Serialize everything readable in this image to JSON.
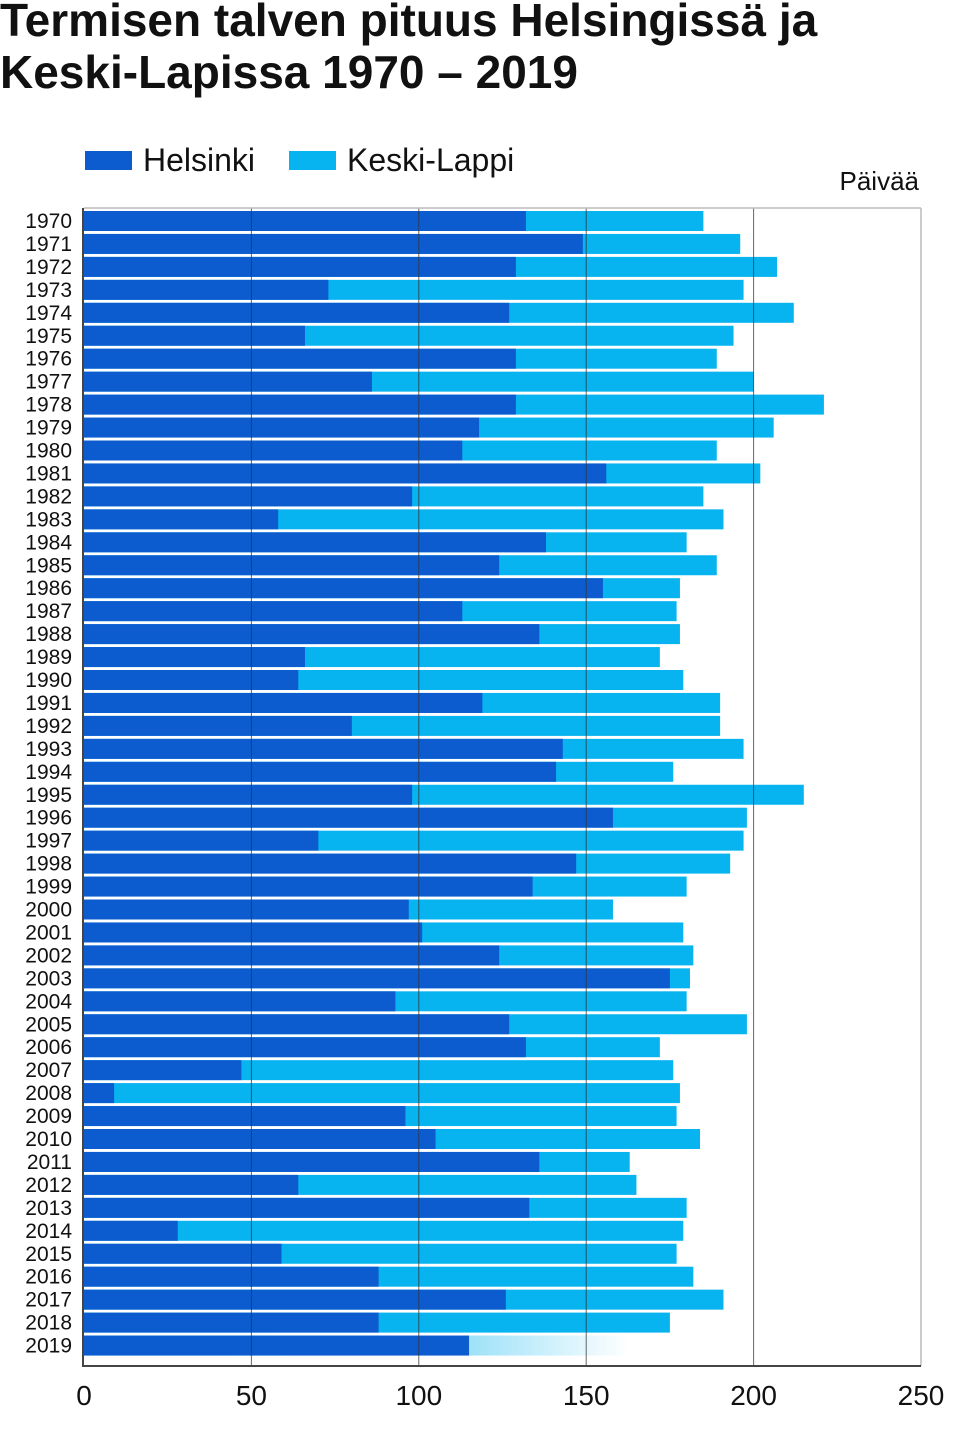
{
  "title": "Termisen talven pituus Helsingissä ja Keski-Lapissa 1970 – 2019",
  "legend": {
    "helsinki": "Helsinki",
    "keski_lappi": "Keski-Lappi"
  },
  "unit_label": "Päivää",
  "colors": {
    "helsinki": "#0c5cd0",
    "keski_lappi": "#07b4ef"
  },
  "chart_data": {
    "type": "bar",
    "orientation": "horizontal",
    "overlay": true,
    "categories": [
      "1970",
      "1971",
      "1972",
      "1973",
      "1974",
      "1975",
      "1976",
      "1977",
      "1978",
      "1979",
      "1980",
      "1981",
      "1982",
      "1983",
      "1984",
      "1985",
      "1986",
      "1987",
      "1988",
      "1989",
      "1990",
      "1991",
      "1992",
      "1993",
      "1994",
      "1995",
      "1996",
      "1997",
      "1998",
      "1999",
      "2000",
      "2001",
      "2002",
      "2003",
      "2004",
      "2005",
      "2006",
      "2007",
      "2008",
      "2009",
      "2010",
      "2011",
      "2012",
      "2013",
      "2014",
      "2015",
      "2016",
      "2017",
      "2018",
      "2019"
    ],
    "series": [
      {
        "name": "Helsinki",
        "values": [
          132,
          149,
          129,
          73,
          127,
          66,
          129,
          86,
          129,
          118,
          113,
          156,
          98,
          58,
          138,
          124,
          155,
          113,
          136,
          66,
          64,
          119,
          80,
          143,
          141,
          98,
          158,
          70,
          147,
          134,
          97,
          101,
          124,
          175,
          93,
          127,
          132,
          47,
          9,
          96,
          105,
          136,
          64,
          133,
          28,
          59,
          88,
          126,
          88,
          115
        ]
      },
      {
        "name": "Keski-Lappi",
        "values": [
          185,
          196,
          207,
          197,
          212,
          194,
          189,
          200,
          221,
          206,
          189,
          202,
          185,
          191,
          180,
          189,
          178,
          177,
          178,
          172,
          179,
          190,
          190,
          197,
          176,
          215,
          198,
          197,
          193,
          180,
          158,
          179,
          182,
          181,
          180,
          198,
          172,
          176,
          178,
          177,
          184,
          163,
          165,
          180,
          179,
          177,
          182,
          191,
          175,
          163
        ]
      }
    ],
    "xlim": [
      0,
      250
    ],
    "xticks": [
      0,
      50,
      100,
      150,
      200,
      250
    ],
    "grid": true,
    "legend_position": "top-left",
    "notes": "2019 Keski-Lappi bar fades out (incomplete season)"
  }
}
